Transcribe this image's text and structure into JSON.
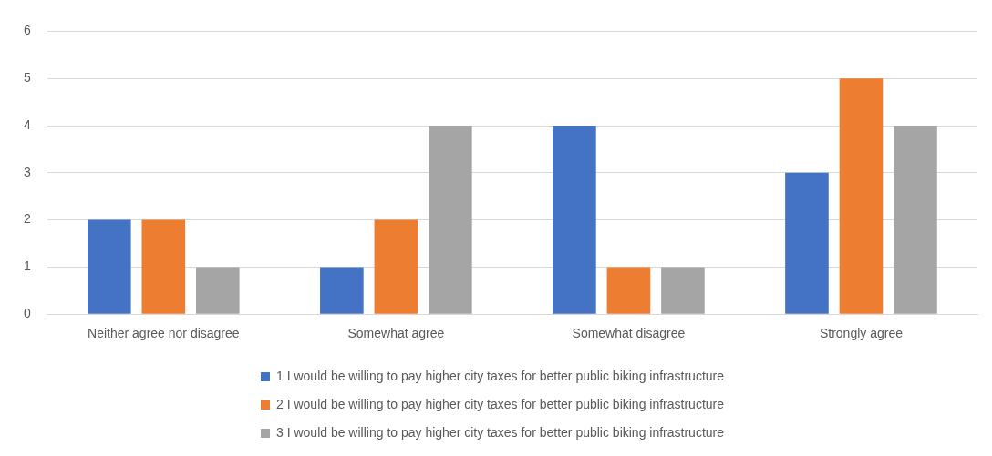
{
  "chart_data": {
    "type": "bar",
    "categories": [
      "Neither agree nor disagree",
      "Somewhat agree",
      "Somewhat disagree",
      "Strongly agree"
    ],
    "series": [
      {
        "name": "1 I would be willing to pay higher city taxes for better public biking infrastructure",
        "color": "#4472c4",
        "values": [
          2,
          1,
          4,
          3
        ]
      },
      {
        "name": "2 I would be willing to pay higher city taxes for better public biking infrastructure",
        "color": "#ed7d31",
        "values": [
          2,
          2,
          1,
          5
        ]
      },
      {
        "name": "3 I would be willing to pay higher city taxes for better public biking infrastructure",
        "color": "#a5a5a5",
        "values": [
          1,
          4,
          1,
          4
        ]
      }
    ],
    "ylim": [
      0,
      6
    ],
    "yticks": [
      0,
      1,
      2,
      3,
      4,
      5,
      6
    ],
    "grid": "y",
    "legend": "bottom"
  }
}
